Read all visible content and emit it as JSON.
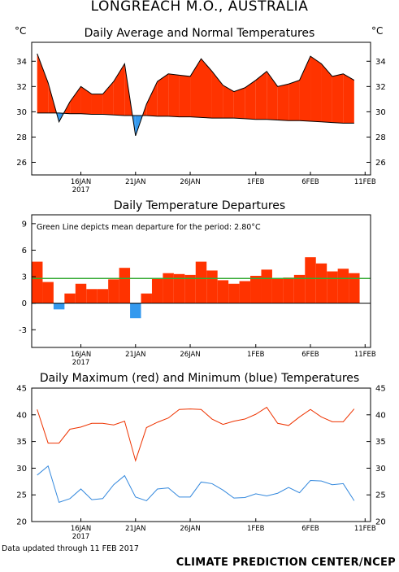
{
  "title": "LONGREACH M.O., AUSTRALIA",
  "footer": {
    "updated": "Data updated through 11 FEB 2017",
    "credit": "CLIMATE PREDICTION CENTER/NCEP"
  },
  "colors": {
    "above": "#ff3300",
    "below": "#3399ee",
    "max_line": "#ee3300",
    "min_line": "#3388dd",
    "mean_line": "#33aa33",
    "axis": "#000000"
  },
  "x_ticks": [
    {
      "label": "16JAN",
      "sub": "2017",
      "day": 4
    },
    {
      "label": "21JAN",
      "sub": "",
      "day": 9
    },
    {
      "label": "26JAN",
      "sub": "",
      "day": 14
    },
    {
      "label": "1FEB",
      "sub": "",
      "day": 20
    },
    {
      "label": "6FEB",
      "sub": "",
      "day": 25
    },
    {
      "label": "11FEB",
      "sub": "",
      "day": 30
    }
  ],
  "chart_data": [
    {
      "type": "area",
      "title": "Daily Average and Normal Temperatures",
      "ylabel_left": "°C",
      "ylabel_right": "°C",
      "ylim": [
        25,
        35.5
      ],
      "yticks": [
        26,
        28,
        30,
        32,
        34
      ],
      "xlim": [
        0,
        31
      ],
      "x": [
        0,
        1,
        2,
        3,
        4,
        5,
        6,
        7,
        8,
        9,
        10,
        11,
        12,
        13,
        14,
        15,
        16,
        17,
        18,
        19,
        20,
        21,
        22,
        23,
        24,
        25,
        26,
        27,
        28,
        29,
        30
      ],
      "series": [
        {
          "name": "Average",
          "values": [
            34.6,
            32.3,
            29.2,
            30.8,
            32.0,
            31.4,
            31.4,
            32.4,
            33.8,
            28.1,
            30.6,
            32.4,
            33.0,
            32.9,
            32.8,
            34.2,
            33.2,
            32.1,
            31.6,
            31.9,
            32.5,
            33.2,
            32.0,
            32.2,
            32.5,
            34.4,
            33.8,
            32.8,
            33.0,
            32.5
          ],
          "x": [
            0,
            1,
            2,
            3,
            4,
            5,
            6,
            7,
            8,
            9,
            10,
            11,
            12,
            13,
            14,
            15,
            16,
            17,
            18,
            19,
            20,
            21,
            22,
            23,
            24,
            25,
            26,
            27,
            28,
            29
          ]
        },
        {
          "name": "Normal",
          "values": [
            29.9,
            29.9,
            29.9,
            29.85,
            29.85,
            29.8,
            29.8,
            29.75,
            29.7,
            29.7,
            29.7,
            29.65,
            29.65,
            29.6,
            29.6,
            29.55,
            29.5,
            29.5,
            29.5,
            29.45,
            29.4,
            29.4,
            29.35,
            29.3,
            29.3,
            29.25,
            29.2,
            29.15,
            29.1,
            29.1
          ],
          "x": [
            0,
            1,
            2,
            3,
            4,
            5,
            6,
            7,
            8,
            9,
            10,
            11,
            12,
            13,
            14,
            15,
            16,
            17,
            18,
            19,
            20,
            21,
            22,
            23,
            24,
            25,
            26,
            27,
            28,
            29
          ]
        }
      ]
    },
    {
      "type": "bar",
      "title": "Daily Temperature Departures",
      "annotation": "Green Line depicts mean departure for the period:  2.80°C",
      "ylim": [
        -5,
        10
      ],
      "yticks": [
        -3,
        0,
        3,
        6,
        9
      ],
      "xlim": [
        0,
        31
      ],
      "mean_departure": 2.8,
      "values": [
        4.7,
        2.4,
        -0.7,
        1.1,
        2.2,
        1.6,
        1.6,
        2.7,
        4.0,
        -1.7,
        1.1,
        2.8,
        3.4,
        3.3,
        3.2,
        4.7,
        3.7,
        2.6,
        2.2,
        2.5,
        3.1,
        3.8,
        2.8,
        2.9,
        3.2,
        5.2,
        4.5,
        3.6,
        3.9,
        3.4
      ]
    },
    {
      "type": "line",
      "title": "Daily Maximum (red) and Minimum (blue) Temperatures",
      "ylim": [
        20,
        45
      ],
      "yticks": [
        20,
        25,
        30,
        35,
        40,
        45
      ],
      "xlim": [
        0,
        31
      ],
      "x": [
        0,
        1,
        2,
        3,
        4,
        5,
        6,
        7,
        8,
        9,
        10,
        11,
        12,
        13,
        14,
        15,
        16,
        17,
        18,
        19,
        20,
        21,
        22,
        23,
        24,
        25,
        26,
        27,
        28,
        29
      ],
      "series": [
        {
          "name": "Maximum",
          "values": [
            41.0,
            34.7,
            34.7,
            37.3,
            37.7,
            38.4,
            38.4,
            38.1,
            38.8,
            31.4,
            37.6,
            38.6,
            39.4,
            41.0,
            41.1,
            41.0,
            39.2,
            38.2,
            38.8,
            39.2,
            40.1,
            41.4,
            38.4,
            38.0,
            39.6,
            41.0,
            39.6,
            38.7,
            38.7,
            41.1
          ]
        },
        {
          "name": "Minimum",
          "values": [
            28.7,
            30.4,
            23.6,
            24.3,
            26.1,
            24.1,
            24.3,
            26.9,
            28.6,
            24.6,
            23.9,
            26.1,
            26.3,
            24.6,
            24.6,
            27.4,
            27.1,
            25.9,
            24.4,
            24.5,
            25.2,
            24.8,
            25.3,
            26.4,
            25.4,
            27.7,
            27.6,
            26.9,
            27.1,
            23.9
          ]
        }
      ]
    }
  ]
}
